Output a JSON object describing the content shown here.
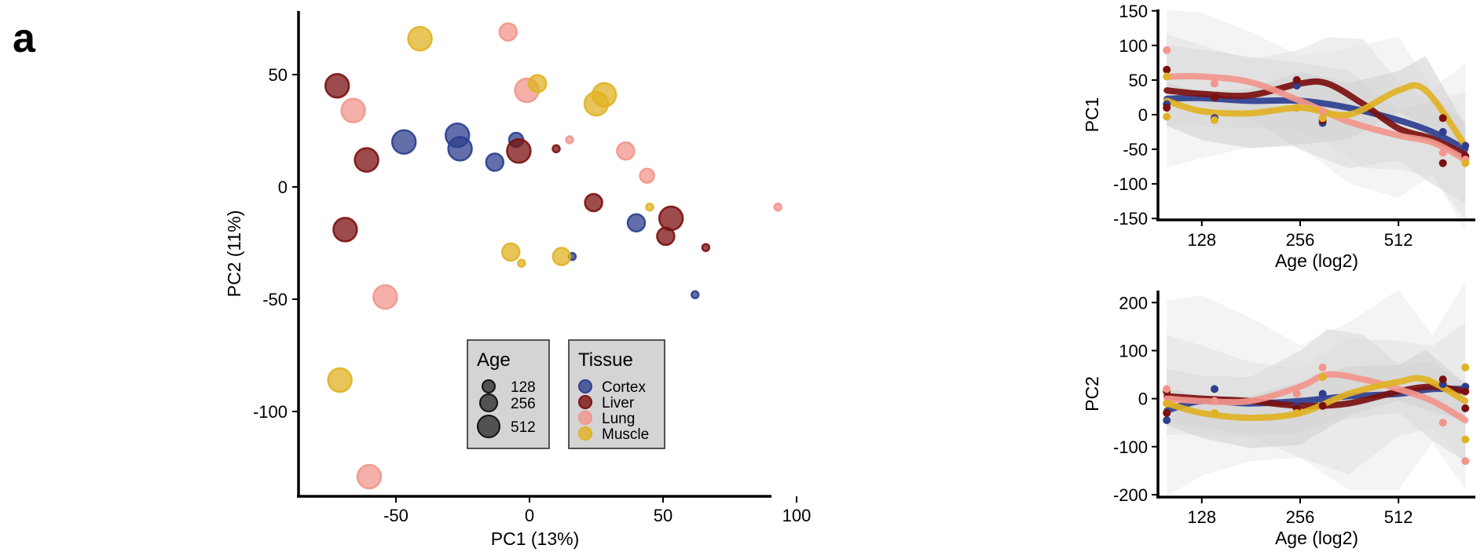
{
  "panel_label": "a",
  "colors": {
    "Cortex": "#2e3f8f",
    "Liver": "#7b1010",
    "Lung": "#f2968c",
    "Muscle": "#e0b224"
  },
  "legend": {
    "age_title": "Age",
    "age_items": [
      "128",
      "256",
      "512"
    ],
    "tissue_title": "Tissue",
    "tissue_items": [
      "Cortex",
      "Liver",
      "Lung",
      "Muscle"
    ]
  },
  "chart_data": [
    {
      "type": "scatter",
      "xlabel": "PC1 (13%)",
      "ylabel": "PC2 (11%)",
      "xlim": [
        -80,
        100
      ],
      "ylim": [
        -138,
        78
      ],
      "xticks": [
        -50,
        0,
        50,
        100
      ],
      "yticks": [
        -100,
        -50,
        0,
        50
      ],
      "series": [
        {
          "name": "Cortex",
          "points": [
            {
              "x": -47,
              "y": 20,
              "age": 512
            },
            {
              "x": -27,
              "y": 23,
              "age": 512
            },
            {
              "x": -26,
              "y": 17,
              "age": 512
            },
            {
              "x": -13,
              "y": 11,
              "age": 256
            },
            {
              "x": -5,
              "y": 21,
              "age": 128
            },
            {
              "x": 16,
              "y": -31,
              "age": 90
            },
            {
              "x": 40,
              "y": -16,
              "age": 256
            },
            {
              "x": 62,
              "y": -48,
              "age": 90
            }
          ]
        },
        {
          "name": "Liver",
          "points": [
            {
              "x": -72,
              "y": 45,
              "age": 512
            },
            {
              "x": -61,
              "y": 12,
              "age": 512
            },
            {
              "x": -69,
              "y": -19,
              "age": 512
            },
            {
              "x": -4,
              "y": 16,
              "age": 512
            },
            {
              "x": 10,
              "y": 17,
              "age": 90
            },
            {
              "x": 24,
              "y": -7,
              "age": 256
            },
            {
              "x": 51,
              "y": -22,
              "age": 256
            },
            {
              "x": 53,
              "y": -14,
              "age": 512
            },
            {
              "x": 66,
              "y": -27,
              "age": 90
            }
          ]
        },
        {
          "name": "Lung",
          "points": [
            {
              "x": -8,
              "y": 69,
              "age": 256
            },
            {
              "x": -66,
              "y": 34,
              "age": 512
            },
            {
              "x": -1,
              "y": 43,
              "age": 512
            },
            {
              "x": 15,
              "y": 21,
              "age": 90
            },
            {
              "x": 36,
              "y": 16,
              "age": 256
            },
            {
              "x": 44,
              "y": 5,
              "age": 128
            },
            {
              "x": 93,
              "y": -9,
              "age": 90
            },
            {
              "x": -54,
              "y": -49,
              "age": 512
            },
            {
              "x": -60,
              "y": -129,
              "age": 512
            }
          ]
        },
        {
          "name": "Muscle",
          "points": [
            {
              "x": -41,
              "y": 66,
              "age": 512
            },
            {
              "x": 3,
              "y": 46,
              "age": 256
            },
            {
              "x": 28,
              "y": 41,
              "age": 512
            },
            {
              "x": 25,
              "y": 37,
              "age": 512
            },
            {
              "x": 45,
              "y": -9,
              "age": 90
            },
            {
              "x": -7,
              "y": -29,
              "age": 256
            },
            {
              "x": -3,
              "y": -34,
              "age": 90
            },
            {
              "x": 12,
              "y": -31,
              "age": 256
            },
            {
              "x": -71,
              "y": -86,
              "age": 512
            }
          ]
        }
      ]
    },
    {
      "type": "line",
      "xlabel": "Age (log2)",
      "ylabel": "PC1",
      "xlim": [
        94,
        880
      ],
      "ylim": [
        -152,
        152
      ],
      "xticks": [
        128,
        256,
        512
      ],
      "yticks": [
        -150,
        -100,
        -50,
        0,
        50,
        100,
        150
      ],
      "series": [
        {
          "name": "Cortex",
          "curve": [
            [
              100,
              23
            ],
            [
              128,
              24
            ],
            [
              180,
              20
            ],
            [
              256,
              20
            ],
            [
              360,
              10
            ],
            [
              512,
              -8
            ],
            [
              650,
              -25
            ],
            [
              820,
              -50
            ]
          ],
          "points": [
            [
              100,
              15
            ],
            [
              140,
              -5
            ],
            [
              250,
              42
            ],
            [
              300,
              -12
            ],
            [
              700,
              -25
            ],
            [
              820,
              -45
            ]
          ]
        },
        {
          "name": "Liver",
          "curve": [
            [
              100,
              35
            ],
            [
              128,
              30
            ],
            [
              180,
              28
            ],
            [
              256,
              45
            ],
            [
              310,
              45
            ],
            [
              400,
              15
            ],
            [
              512,
              -20
            ],
            [
              650,
              -35
            ],
            [
              820,
              -58
            ]
          ],
          "points": [
            [
              100,
              65
            ],
            [
              100,
              10
            ],
            [
              140,
              25
            ],
            [
              250,
              50
            ],
            [
              300,
              -8
            ],
            [
              700,
              -5
            ],
            [
              700,
              -70
            ],
            [
              820,
              -60
            ]
          ]
        },
        {
          "name": "Lung",
          "curve": [
            [
              100,
              55
            ],
            [
              128,
              55
            ],
            [
              180,
              47
            ],
            [
              256,
              20
            ],
            [
              360,
              -10
            ],
            [
              512,
              -30
            ],
            [
              650,
              -40
            ],
            [
              820,
              -65
            ]
          ],
          "points": [
            [
              100,
              93
            ],
            [
              140,
              45
            ],
            [
              250,
              10
            ],
            [
              300,
              5
            ],
            [
              700,
              -55
            ],
            [
              820,
              -65
            ]
          ]
        },
        {
          "name": "Muscle",
          "curve": [
            [
              100,
              20
            ],
            [
              128,
              5
            ],
            [
              180,
              2
            ],
            [
              256,
              10
            ],
            [
              360,
              0
            ],
            [
              512,
              35
            ],
            [
              620,
              35
            ],
            [
              820,
              -45
            ]
          ],
          "points": [
            [
              100,
              -3
            ],
            [
              100,
              55
            ],
            [
              140,
              -8
            ],
            [
              250,
              10
            ],
            [
              300,
              -5
            ],
            [
              820,
              -70
            ]
          ]
        }
      ]
    },
    {
      "type": "line",
      "xlabel": "Age (log2)",
      "ylabel": "PC2",
      "xlim": [
        94,
        880
      ],
      "ylim": [
        -205,
        225
      ],
      "xticks": [
        128,
        256,
        512
      ],
      "yticks": [
        -200,
        -100,
        0,
        100,
        200
      ],
      "series": [
        {
          "name": "Cortex",
          "curve": [
            [
              100,
              -25
            ],
            [
              128,
              -5
            ],
            [
              180,
              -10
            ],
            [
              256,
              -5
            ],
            [
              360,
              5
            ],
            [
              512,
              10
            ],
            [
              650,
              20
            ],
            [
              820,
              20
            ]
          ],
          "points": [
            [
              100,
              -45
            ],
            [
              140,
              20
            ],
            [
              250,
              -15
            ],
            [
              300,
              10
            ],
            [
              700,
              30
            ],
            [
              820,
              25
            ]
          ]
        },
        {
          "name": "Liver",
          "curve": [
            [
              100,
              5
            ],
            [
              128,
              0
            ],
            [
              180,
              -5
            ],
            [
              256,
              -15
            ],
            [
              360,
              -10
            ],
            [
              512,
              15
            ],
            [
              650,
              25
            ],
            [
              820,
              15
            ]
          ],
          "points": [
            [
              100,
              15
            ],
            [
              100,
              -30
            ],
            [
              140,
              -5
            ],
            [
              250,
              -20
            ],
            [
              300,
              -15
            ],
            [
              700,
              40
            ],
            [
              820,
              -20
            ],
            [
              820,
              15
            ]
          ]
        },
        {
          "name": "Lung",
          "curve": [
            [
              100,
              0
            ],
            [
              128,
              -5
            ],
            [
              180,
              -5
            ],
            [
              256,
              25
            ],
            [
              310,
              50
            ],
            [
              400,
              40
            ],
            [
              512,
              20
            ],
            [
              650,
              -5
            ],
            [
              820,
              -45
            ]
          ],
          "points": [
            [
              100,
              20
            ],
            [
              140,
              -5
            ],
            [
              250,
              10
            ],
            [
              300,
              65
            ],
            [
              700,
              -50
            ],
            [
              820,
              -130
            ]
          ]
        },
        {
          "name": "Muscle",
          "curve": [
            [
              100,
              -10
            ],
            [
              128,
              -30
            ],
            [
              180,
              -40
            ],
            [
              256,
              -30
            ],
            [
              360,
              10
            ],
            [
              512,
              35
            ],
            [
              620,
              40
            ],
            [
              820,
              -5
            ]
          ],
          "points": [
            [
              100,
              -10
            ],
            [
              140,
              -30
            ],
            [
              250,
              -30
            ],
            [
              300,
              45
            ],
            [
              820,
              65
            ],
            [
              820,
              -85
            ]
          ]
        }
      ]
    }
  ]
}
